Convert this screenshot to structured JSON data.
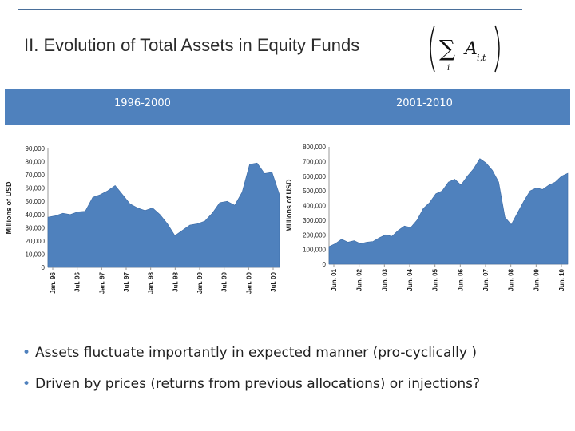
{
  "slide": {
    "title": "II. Evolution of Total Assets in Equity Funds",
    "formula": {
      "sum_symbol": "∑",
      "term": "A",
      "subscript": "i,t",
      "index": "i"
    },
    "periods": [
      "1996-2000",
      "2001-2010"
    ],
    "bullets": [
      "Assets fluctuate importantly in expected manner (pro-cyclically )",
      "Driven by prices (returns from previous allocations) or injections?"
    ]
  },
  "colors": {
    "accent": "#4f81bd",
    "area": "#4f81bd",
    "title_text": "#2b2b2b"
  },
  "chart_data": [
    {
      "type": "area",
      "title": "1996-2000",
      "ylabel": "Millions of USD",
      "ylim": [
        0,
        90000
      ],
      "yticks": [
        "90,000",
        "80,000",
        "70,000",
        "60,000",
        "50,000",
        "40,000",
        "30,000",
        "20,000",
        "10,000",
        "0"
      ],
      "xticks": [
        "Jan. 96",
        "Jul. 96",
        "Jan. 97",
        "Jul. 97",
        "Jan. 98",
        "Jul. 98",
        "Jan. 99",
        "Jul. 99",
        "Jan. 00",
        "Jul. 00"
      ],
      "x": [
        0,
        2,
        4,
        6,
        8,
        10,
        12,
        14,
        16,
        18,
        20,
        22,
        24,
        26,
        28,
        30,
        32,
        34,
        36,
        38,
        40,
        42,
        44,
        46,
        48,
        50,
        52,
        54,
        56,
        58,
        60,
        62
      ],
      "values": [
        38000,
        39000,
        41000,
        40000,
        42000,
        42500,
        53000,
        55000,
        58000,
        62000,
        55000,
        48000,
        45000,
        43000,
        45000,
        40000,
        33000,
        24000,
        28000,
        32000,
        33000,
        35000,
        41000,
        49000,
        50000,
        47000,
        57000,
        78000,
        79000,
        71000,
        72000,
        55000
      ]
    },
    {
      "type": "area",
      "title": "2001-2010",
      "ylabel": "Millions of USD",
      "ylim": [
        0,
        800000
      ],
      "yticks": [
        "800,000",
        "700,000",
        "600,000",
        "500,000",
        "400,000",
        "300,000",
        "200,000",
        "100,000",
        "0"
      ],
      "xticks": [
        "Jun. 01",
        "Jun. 02",
        "Jun. 03",
        "Jun. 04",
        "Jun. 05",
        "Jun. 06",
        "Jun. 07",
        "Jun. 08",
        "Jun. 09",
        "Jun. 10"
      ],
      "x": [
        0,
        3,
        6,
        9,
        12,
        15,
        18,
        21,
        24,
        27,
        30,
        33,
        36,
        39,
        42,
        45,
        48,
        51,
        54,
        57,
        60,
        63,
        66,
        69,
        72,
        75,
        78,
        81,
        84,
        87,
        90,
        93,
        96,
        99,
        102,
        105,
        108,
        111,
        114
      ],
      "values": [
        120000,
        140000,
        170000,
        150000,
        160000,
        140000,
        150000,
        155000,
        180000,
        200000,
        190000,
        230000,
        260000,
        250000,
        300000,
        380000,
        420000,
        480000,
        500000,
        560000,
        580000,
        540000,
        600000,
        650000,
        720000,
        690000,
        640000,
        560000,
        320000,
        270000,
        350000,
        430000,
        500000,
        520000,
        510000,
        540000,
        560000,
        600000,
        620000
      ]
    }
  ]
}
